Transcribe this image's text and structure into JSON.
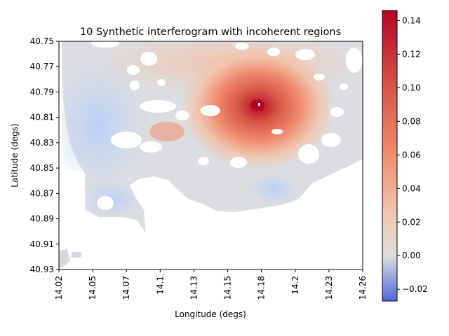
{
  "chart_data": {
    "type": "heatmap",
    "title": "10 Synthetic interferogram with incoherent regions",
    "xlabel": "Longitude (degs)",
    "ylabel": "Latitude (degs)",
    "x_ticks": [
      "14.02",
      "14.05",
      "14.07",
      "14.1",
      "14.13",
      "14.15",
      "14.18",
      "14.2",
      "14.23",
      "14.26"
    ],
    "y_ticks": [
      "40.75",
      "40.77",
      "40.79",
      "40.81",
      "40.83",
      "40.85",
      "40.87",
      "40.89",
      "40.91",
      "40.93"
    ],
    "xlim": [
      14.02,
      14.26
    ],
    "ylim": [
      40.75,
      40.93
    ],
    "y_axis_inverted": true,
    "colormap": "coolwarm",
    "colorbar": {
      "ticks": [
        "0.14",
        "0.12",
        "0.10",
        "0.08",
        "0.06",
        "0.04",
        "0.02",
        "0.00",
        "−0.02"
      ],
      "range": [
        -0.027,
        0.146
      ]
    },
    "features": {
      "peak_deformation": {
        "lon": 14.18,
        "lat": 40.8,
        "value": 0.146
      },
      "secondary_high": {
        "lon": 14.1,
        "lat": 40.82,
        "value": 0.03
      },
      "background_range": [
        -0.02,
        0.02
      ],
      "incoherent_regions": "masked (white)"
    },
    "colors": {
      "low": "#3b4cc0",
      "mid": "#dddddd",
      "high": "#b40426"
    }
  }
}
